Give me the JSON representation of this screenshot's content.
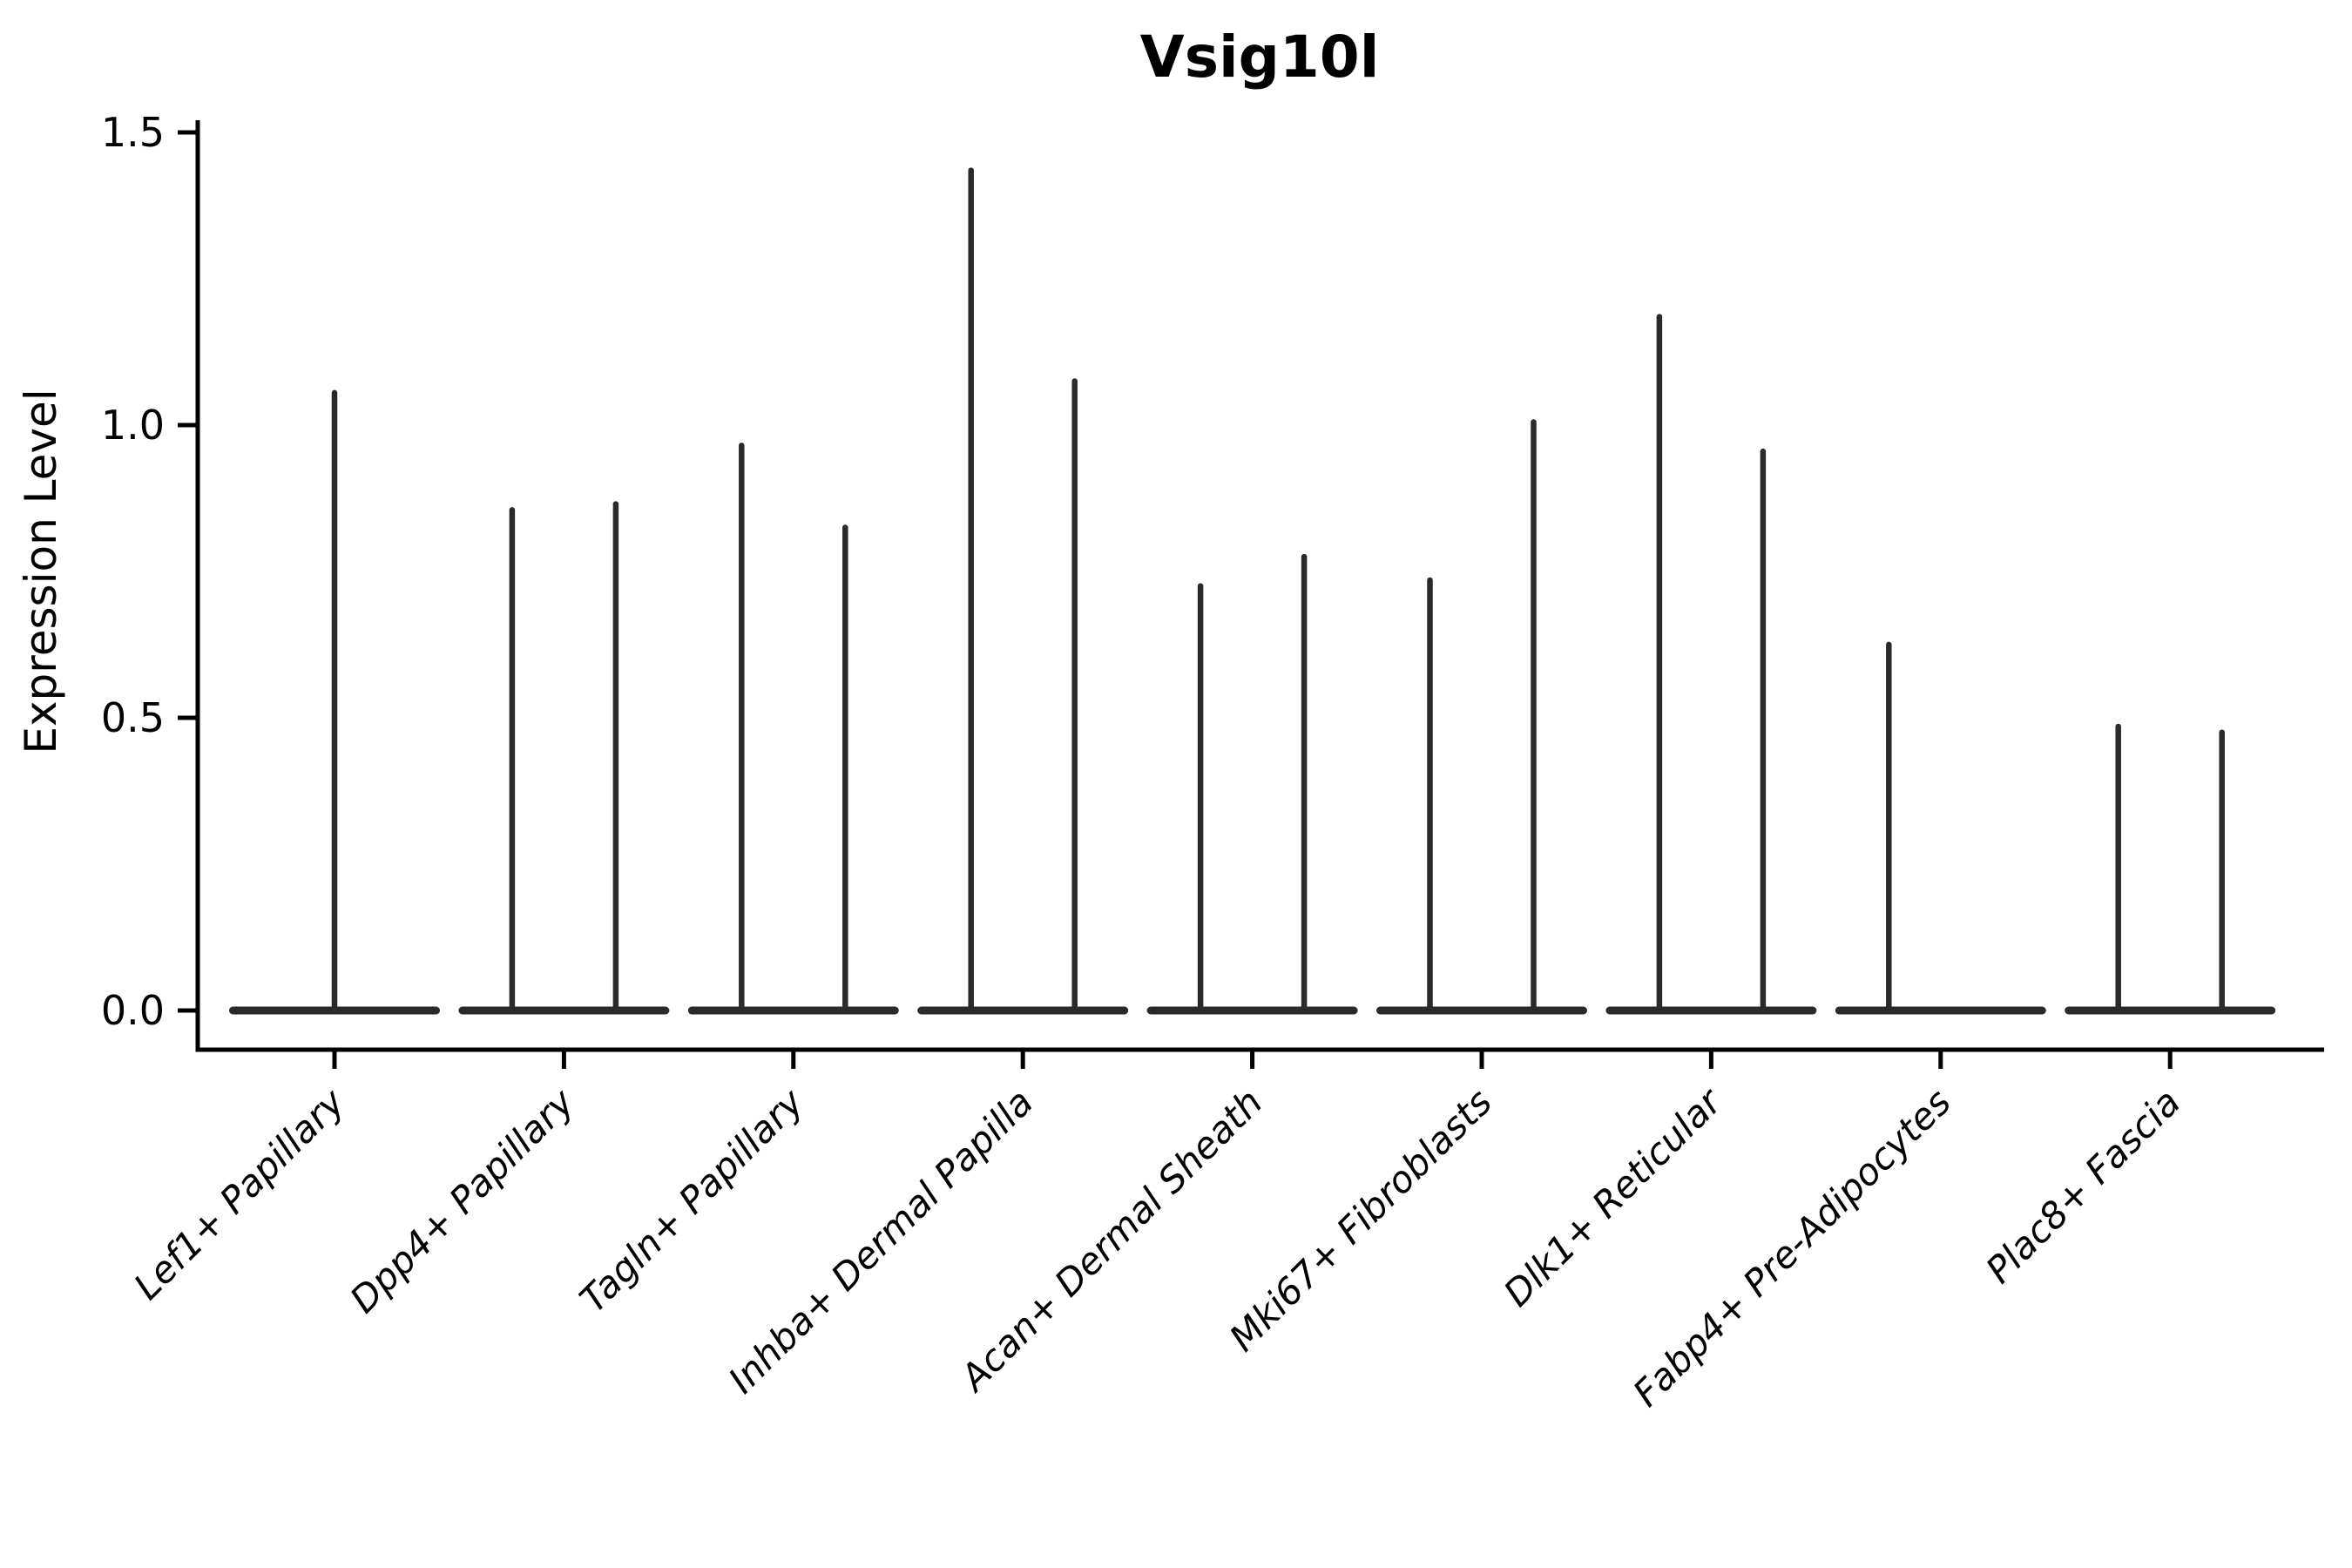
{
  "chart_data": {
    "type": "violin",
    "title": "Vsig10l",
    "xlabel": "",
    "ylabel": "Expression Level",
    "ylim": [
      0,
      1.5
    ],
    "yticks": [
      "0.0",
      "0.5",
      "1.0",
      "1.5"
    ],
    "legend": "none",
    "grid": false,
    "baseline_value": 0.0,
    "ink_color": "#2a2a2a",
    "axis_color": "#000000",
    "background_color": "#ffffff",
    "description": "Needle-style violin plot; each cluster shows a wide flat density lens at expression 0 with thin spikes rising to the maximum expression values",
    "categories": [
      {
        "label": "Lef1+ Papillary",
        "spikes": [
          {
            "side": "center",
            "value": 1.06
          }
        ]
      },
      {
        "label": "Dpp4+ Papillary",
        "spikes": [
          {
            "side": "left",
            "value": 0.86
          },
          {
            "side": "right",
            "value": 0.87
          }
        ]
      },
      {
        "label": "Tagln+ Papillary",
        "spikes": [
          {
            "side": "left",
            "value": 0.97
          },
          {
            "side": "right",
            "value": 0.83
          }
        ]
      },
      {
        "label": "Inhba+ Dermal Papilla",
        "spikes": [
          {
            "side": "left",
            "value": 1.44
          },
          {
            "side": "right",
            "value": 1.08
          }
        ]
      },
      {
        "label": "Acan+ Dermal Sheath",
        "spikes": [
          {
            "side": "left",
            "value": 0.73
          },
          {
            "side": "right",
            "value": 0.78
          }
        ]
      },
      {
        "label": "Mki67+ Fibroblasts",
        "spikes": [
          {
            "side": "left",
            "value": 0.74
          },
          {
            "side": "right",
            "value": 1.01
          }
        ]
      },
      {
        "label": "Dlk1+ Reticular",
        "spikes": [
          {
            "side": "left",
            "value": 1.19
          },
          {
            "side": "right",
            "value": 0.96
          }
        ]
      },
      {
        "label": "Fabp4+ Pre-Adipocytes",
        "spikes": [
          {
            "side": "left",
            "value": 0.63
          }
        ]
      },
      {
        "label": "Plac8+ Fascia",
        "spikes": [
          {
            "side": "left",
            "value": 0.49
          },
          {
            "side": "right",
            "value": 0.48
          }
        ]
      }
    ]
  }
}
